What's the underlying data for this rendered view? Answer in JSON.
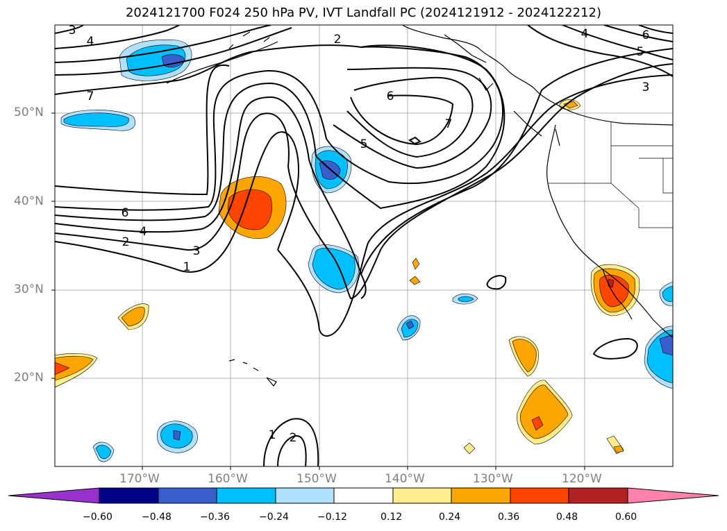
{
  "title": "2024121700 F024 250 hPa PV, IVT Landfall PC (2024121912 - 2024122212)",
  "lat_labels": [
    "50°N",
    "40°N",
    "30°N",
    "20°N"
  ],
  "lon_labels": [
    "170°W",
    "160°W",
    "150°W",
    "140°W",
    "130°W",
    "120°W"
  ],
  "contour_labels": [
    "3",
    "4",
    "7",
    "6",
    "4",
    "2",
    "1",
    "3",
    "2",
    "6",
    "5",
    "7",
    "6",
    "5",
    "4",
    "3",
    "1",
    "2"
  ],
  "colorbar": {
    "tick_labels": [
      "−0.60",
      "−0.48",
      "−0.36",
      "−0.24",
      "−0.12",
      "0.12",
      "0.24",
      "0.36",
      "0.48",
      "0.60"
    ],
    "colors": [
      "#9932cc",
      "#00008b",
      "#3a5fcd",
      "#00bfff",
      "#b0e2ff",
      "#ffffff",
      "#ffec8b",
      "#ffa500",
      "#ff4500",
      "#b22222",
      "#ff82ab"
    ]
  },
  "fill_colors": {
    "neg_strong": "#3a5fcd",
    "neg_mid": "#00bfff",
    "neg_weak": "#b0e2ff",
    "pos_weak": "#ffec8b",
    "pos_mid": "#ffa500",
    "pos_strong": "#ff4500",
    "pos_vstrong": "#b22222"
  }
}
